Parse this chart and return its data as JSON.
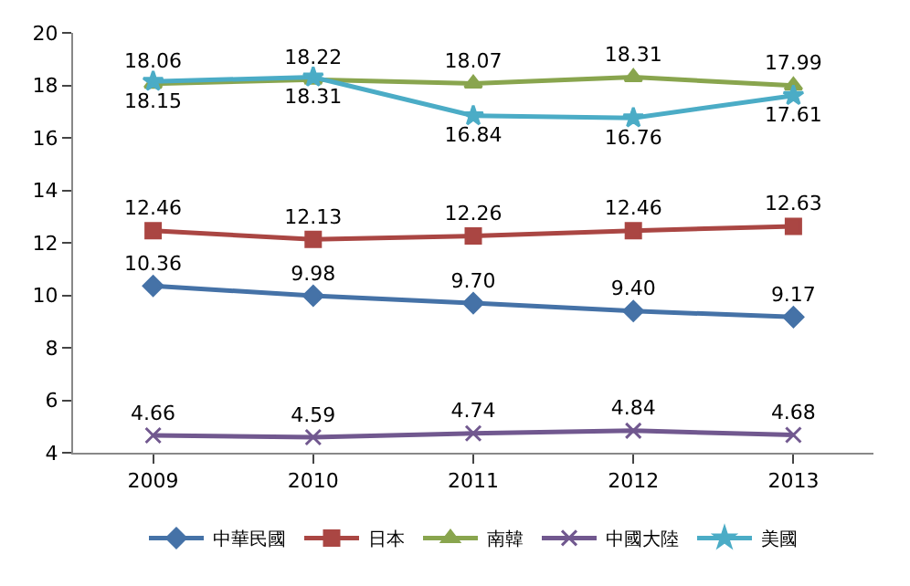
{
  "chart_data": {
    "type": "line",
    "categories": [
      "2009",
      "2010",
      "2011",
      "2012",
      "2013"
    ],
    "series": [
      {
        "name": "中華民國",
        "color": "#4572a7",
        "marker": "diamond",
        "values": [
          10.36,
          9.98,
          9.7,
          9.4,
          9.17
        ],
        "value_labels": [
          "10.36",
          "9.98",
          "9.70",
          "9.40",
          "9.17"
        ]
      },
      {
        "name": "日本",
        "color": "#aa4643",
        "marker": "square",
        "values": [
          12.46,
          12.13,
          12.26,
          12.46,
          12.63
        ],
        "value_labels": [
          "12.46",
          "12.13",
          "12.26",
          "12.46",
          "12.63"
        ]
      },
      {
        "name": "南韓",
        "color": "#89a54e",
        "marker": "triangle",
        "values": [
          18.06,
          18.22,
          18.07,
          18.31,
          17.99
        ],
        "value_labels": [
          "18.06",
          "18.22",
          "18.07",
          "18.31",
          "17.99"
        ]
      },
      {
        "name": "中國大陸",
        "color": "#71588f",
        "marker": "cross",
        "values": [
          4.66,
          4.59,
          4.74,
          4.84,
          4.68
        ],
        "value_labels": [
          "4.66",
          "4.59",
          "4.74",
          "4.84",
          "4.68"
        ]
      },
      {
        "name": "美國",
        "color": "#4bacc6",
        "marker": "star",
        "values": [
          18.15,
          18.31,
          16.84,
          16.76,
          17.61
        ],
        "value_labels": [
          "18.15",
          "18.31",
          "16.84",
          "16.76",
          "17.61"
        ]
      }
    ],
    "ylim": [
      4,
      20
    ],
    "yticks": [
      4,
      6,
      8,
      10,
      12,
      14,
      16,
      18,
      20
    ],
    "legend": "bottom"
  }
}
